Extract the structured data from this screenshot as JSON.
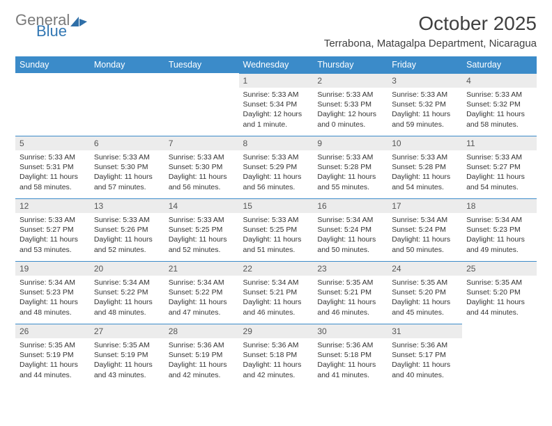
{
  "brand": {
    "general": "General",
    "blue": "Blue"
  },
  "title": "October 2025",
  "location": "Terrabona, Matagalpa Department, Nicaragua",
  "colors": {
    "header_bg": "#3b8bc9",
    "header_text": "#ffffff",
    "daynum_bg": "#ececec",
    "border": "#3b8bc9",
    "text": "#333333",
    "logo_gray": "#7a7a7a",
    "logo_blue": "#3277b3"
  },
  "day_headers": [
    "Sunday",
    "Monday",
    "Tuesday",
    "Wednesday",
    "Thursday",
    "Friday",
    "Saturday"
  ],
  "weeks": [
    [
      null,
      null,
      null,
      {
        "n": "1",
        "sr": "5:33 AM",
        "ss": "5:34 PM",
        "dl": "12 hours and 1 minute."
      },
      {
        "n": "2",
        "sr": "5:33 AM",
        "ss": "5:33 PM",
        "dl": "12 hours and 0 minutes."
      },
      {
        "n": "3",
        "sr": "5:33 AM",
        "ss": "5:32 PM",
        "dl": "11 hours and 59 minutes."
      },
      {
        "n": "4",
        "sr": "5:33 AM",
        "ss": "5:32 PM",
        "dl": "11 hours and 58 minutes."
      }
    ],
    [
      {
        "n": "5",
        "sr": "5:33 AM",
        "ss": "5:31 PM",
        "dl": "11 hours and 58 minutes."
      },
      {
        "n": "6",
        "sr": "5:33 AM",
        "ss": "5:30 PM",
        "dl": "11 hours and 57 minutes."
      },
      {
        "n": "7",
        "sr": "5:33 AM",
        "ss": "5:30 PM",
        "dl": "11 hours and 56 minutes."
      },
      {
        "n": "8",
        "sr": "5:33 AM",
        "ss": "5:29 PM",
        "dl": "11 hours and 56 minutes."
      },
      {
        "n": "9",
        "sr": "5:33 AM",
        "ss": "5:28 PM",
        "dl": "11 hours and 55 minutes."
      },
      {
        "n": "10",
        "sr": "5:33 AM",
        "ss": "5:28 PM",
        "dl": "11 hours and 54 minutes."
      },
      {
        "n": "11",
        "sr": "5:33 AM",
        "ss": "5:27 PM",
        "dl": "11 hours and 54 minutes."
      }
    ],
    [
      {
        "n": "12",
        "sr": "5:33 AM",
        "ss": "5:27 PM",
        "dl": "11 hours and 53 minutes."
      },
      {
        "n": "13",
        "sr": "5:33 AM",
        "ss": "5:26 PM",
        "dl": "11 hours and 52 minutes."
      },
      {
        "n": "14",
        "sr": "5:33 AM",
        "ss": "5:25 PM",
        "dl": "11 hours and 52 minutes."
      },
      {
        "n": "15",
        "sr": "5:33 AM",
        "ss": "5:25 PM",
        "dl": "11 hours and 51 minutes."
      },
      {
        "n": "16",
        "sr": "5:34 AM",
        "ss": "5:24 PM",
        "dl": "11 hours and 50 minutes."
      },
      {
        "n": "17",
        "sr": "5:34 AM",
        "ss": "5:24 PM",
        "dl": "11 hours and 50 minutes."
      },
      {
        "n": "18",
        "sr": "5:34 AM",
        "ss": "5:23 PM",
        "dl": "11 hours and 49 minutes."
      }
    ],
    [
      {
        "n": "19",
        "sr": "5:34 AM",
        "ss": "5:23 PM",
        "dl": "11 hours and 48 minutes."
      },
      {
        "n": "20",
        "sr": "5:34 AM",
        "ss": "5:22 PM",
        "dl": "11 hours and 48 minutes."
      },
      {
        "n": "21",
        "sr": "5:34 AM",
        "ss": "5:22 PM",
        "dl": "11 hours and 47 minutes."
      },
      {
        "n": "22",
        "sr": "5:34 AM",
        "ss": "5:21 PM",
        "dl": "11 hours and 46 minutes."
      },
      {
        "n": "23",
        "sr": "5:35 AM",
        "ss": "5:21 PM",
        "dl": "11 hours and 46 minutes."
      },
      {
        "n": "24",
        "sr": "5:35 AM",
        "ss": "5:20 PM",
        "dl": "11 hours and 45 minutes."
      },
      {
        "n": "25",
        "sr": "5:35 AM",
        "ss": "5:20 PM",
        "dl": "11 hours and 44 minutes."
      }
    ],
    [
      {
        "n": "26",
        "sr": "5:35 AM",
        "ss": "5:19 PM",
        "dl": "11 hours and 44 minutes."
      },
      {
        "n": "27",
        "sr": "5:35 AM",
        "ss": "5:19 PM",
        "dl": "11 hours and 43 minutes."
      },
      {
        "n": "28",
        "sr": "5:36 AM",
        "ss": "5:19 PM",
        "dl": "11 hours and 42 minutes."
      },
      {
        "n": "29",
        "sr": "5:36 AM",
        "ss": "5:18 PM",
        "dl": "11 hours and 42 minutes."
      },
      {
        "n": "30",
        "sr": "5:36 AM",
        "ss": "5:18 PM",
        "dl": "11 hours and 41 minutes."
      },
      {
        "n": "31",
        "sr": "5:36 AM",
        "ss": "5:17 PM",
        "dl": "11 hours and 40 minutes."
      },
      null
    ]
  ],
  "labels": {
    "sunrise": "Sunrise:",
    "sunset": "Sunset:",
    "daylight": "Daylight:"
  }
}
